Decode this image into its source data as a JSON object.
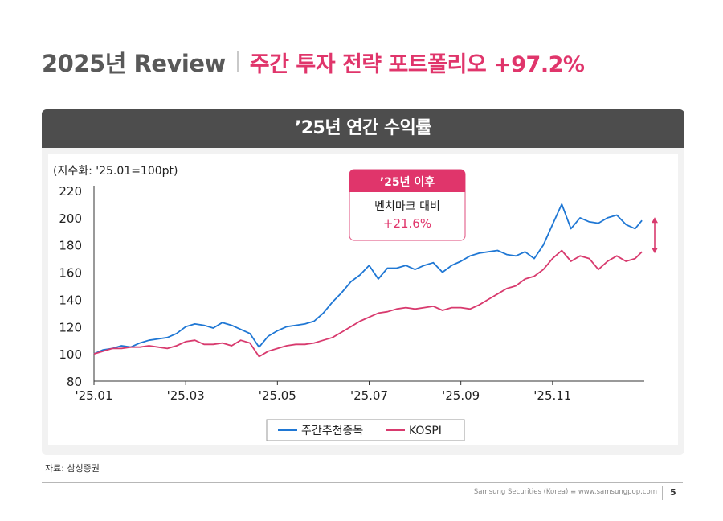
{
  "header": {
    "title": "2025년 Review",
    "subtitle": "주간 투자 전략 포트폴리오 +97.2%"
  },
  "panel": {
    "title": "’25년 연간 수익률"
  },
  "chart_data": {
    "type": "line",
    "title": "’25년 연간 수익률",
    "ylabel": "(지수화: '25.01=100pt)",
    "ylim": [
      80,
      220
    ],
    "yticks": [
      80,
      100,
      120,
      140,
      160,
      180,
      200,
      220
    ],
    "xticks": [
      "'25.01",
      "'25.03",
      "'25.05",
      "'25.07",
      "'25.09",
      "'25.11"
    ],
    "x_tick_positions": [
      0,
      2,
      4,
      6,
      8,
      10
    ],
    "x_range": [
      0,
      12
    ],
    "series": [
      {
        "name": "주간추천종목",
        "color": "#1f77d4",
        "x": [
          0,
          0.2,
          0.4,
          0.6,
          0.8,
          1.0,
          1.2,
          1.4,
          1.6,
          1.8,
          2.0,
          2.2,
          2.4,
          2.6,
          2.8,
          3.0,
          3.2,
          3.4,
          3.6,
          3.8,
          4.0,
          4.2,
          4.4,
          4.6,
          4.8,
          5.0,
          5.2,
          5.4,
          5.6,
          5.8,
          6.0,
          6.2,
          6.4,
          6.6,
          6.8,
          7.0,
          7.2,
          7.4,
          7.6,
          7.8,
          8.0,
          8.2,
          8.4,
          8.6,
          8.8,
          9.0,
          9.2,
          9.4,
          9.6,
          9.8,
          10.0,
          10.2,
          10.4,
          10.6,
          10.8,
          11.0,
          11.2,
          11.4,
          11.6,
          11.8,
          11.95
        ],
        "values": [
          100,
          103,
          104,
          106,
          105,
          108,
          110,
          111,
          112,
          115,
          120,
          122,
          121,
          119,
          123,
          121,
          118,
          115,
          105,
          113,
          117,
          120,
          121,
          122,
          124,
          130,
          138,
          145,
          153,
          158,
          165,
          155,
          163,
          163,
          165,
          162,
          165,
          167,
          160,
          165,
          168,
          172,
          174,
          175,
          176,
          173,
          172,
          175,
          170,
          180,
          195,
          210,
          192,
          200,
          197,
          196,
          200,
          202,
          195,
          192,
          198
        ]
      },
      {
        "name": "KOSPI",
        "color": "#d83a6e",
        "x": [
          0,
          0.2,
          0.4,
          0.6,
          0.8,
          1.0,
          1.2,
          1.4,
          1.6,
          1.8,
          2.0,
          2.2,
          2.4,
          2.6,
          2.8,
          3.0,
          3.2,
          3.4,
          3.6,
          3.8,
          4.0,
          4.2,
          4.4,
          4.6,
          4.8,
          5.0,
          5.2,
          5.4,
          5.6,
          5.8,
          6.0,
          6.2,
          6.4,
          6.6,
          6.8,
          7.0,
          7.2,
          7.4,
          7.6,
          7.8,
          8.0,
          8.2,
          8.4,
          8.6,
          8.8,
          9.0,
          9.2,
          9.4,
          9.6,
          9.8,
          10.0,
          10.2,
          10.4,
          10.6,
          10.8,
          11.0,
          11.2,
          11.4,
          11.6,
          11.8,
          11.95
        ],
        "values": [
          100,
          102,
          104,
          104,
          105,
          105,
          106,
          105,
          104,
          106,
          109,
          110,
          107,
          107,
          108,
          106,
          110,
          108,
          98,
          102,
          104,
          106,
          107,
          107,
          108,
          110,
          112,
          116,
          120,
          124,
          127,
          130,
          131,
          133,
          134,
          133,
          134,
          135,
          132,
          134,
          134,
          133,
          136,
          140,
          144,
          148,
          150,
          155,
          157,
          162,
          170,
          176,
          168,
          172,
          170,
          162,
          168,
          172,
          168,
          170,
          175
        ]
      }
    ],
    "annotation": {
      "header": "’25년 이후",
      "label": "벤치마크 대비",
      "value": "+21.6%"
    },
    "legend": {
      "placement": "bottom-center"
    }
  },
  "source": "자료: 삼성증권",
  "footer": {
    "company": "Samsung Securities (Korea) ≡ www.samsungpop.com",
    "page": "5"
  }
}
